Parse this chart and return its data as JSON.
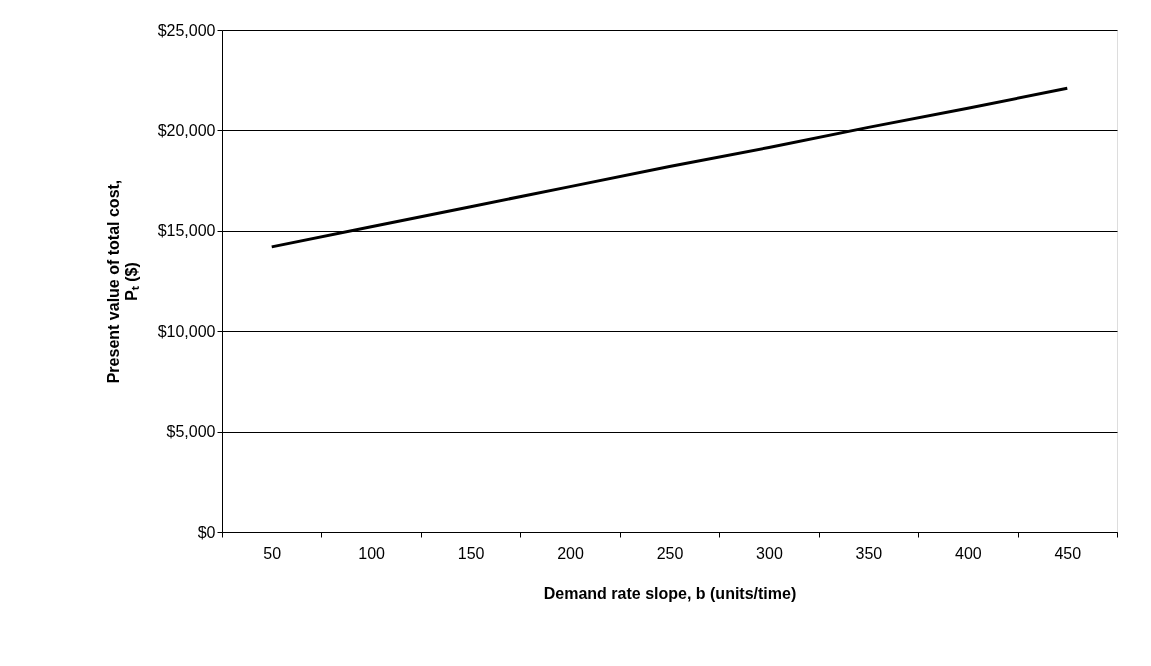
{
  "chart_data": {
    "type": "line",
    "xlabel": "Demand rate slope, b (units/time)",
    "ylabel": "Present value of total cost,\nPₜ ($)",
    "categories": [
      "50",
      "100",
      "150",
      "200",
      "250",
      "300",
      "350",
      "400",
      "450"
    ],
    "series": [
      {
        "color": "#000000",
        "values": [
          14200,
          15200,
          16200,
          17200,
          18200,
          19150,
          20150,
          21100,
          22100
        ]
      }
    ],
    "ylim": [
      0,
      25000
    ],
    "yticks": [
      {
        "value": 0,
        "label": "$0"
      },
      {
        "value": 5000,
        "label": "$5,000"
      },
      {
        "value": 10000,
        "label": "$10,000"
      },
      {
        "value": 15000,
        "label": "$15,000"
      },
      {
        "value": 20000,
        "label": "$20,000"
      },
      {
        "value": 25000,
        "label": "$25,000"
      }
    ],
    "grid": "y",
    "legend": false,
    "marker": "none",
    "line_style": "solid"
  }
}
